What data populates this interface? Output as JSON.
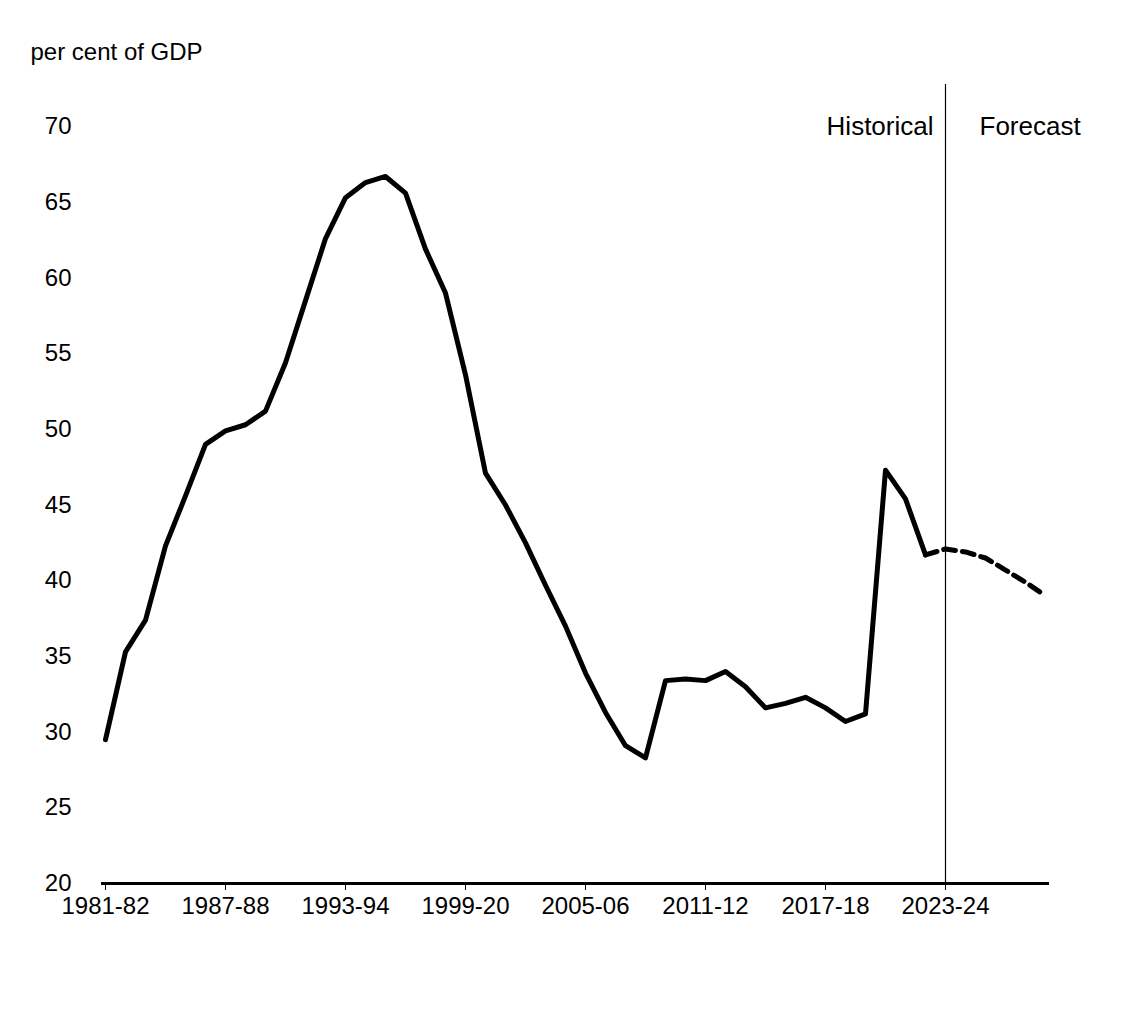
{
  "chart_data": {
    "type": "line",
    "y_label": "per cent of GDP",
    "categories": [
      "1981-82",
      null,
      null,
      null,
      null,
      null,
      "1987-88",
      null,
      null,
      null,
      null,
      null,
      "1993-94",
      null,
      null,
      null,
      null,
      null,
      "1999-20",
      null,
      null,
      null,
      null,
      null,
      "2005-06",
      null,
      null,
      null,
      null,
      null,
      "2011-12",
      null,
      null,
      null,
      null,
      null,
      "2017-18",
      null,
      null,
      null,
      null,
      null,
      "2023-24",
      null,
      null,
      null,
      null,
      null
    ],
    "series": [
      {
        "name": "Historical",
        "color": "#000000",
        "line_style": "solid",
        "values": [
          29.5,
          35.3,
          37.4,
          42.3,
          45.6,
          49.0,
          49.9,
          50.3,
          51.2,
          54.4,
          58.5,
          62.6,
          65.3,
          66.3,
          66.7,
          65.6,
          61.9,
          59.0,
          53.6,
          47.1,
          45.0,
          42.5,
          39.7,
          37.0,
          33.9,
          31.3,
          29.1,
          28.3,
          33.4,
          33.5,
          33.4,
          34.0,
          33.0,
          31.6,
          31.9,
          32.3,
          31.6,
          30.7,
          31.2,
          47.3,
          45.4,
          41.7,
          null,
          null,
          null,
          null,
          null,
          null
        ]
      },
      {
        "name": "Forecast",
        "color": "#000000",
        "line_style": "dashed",
        "values": [
          null,
          null,
          null,
          null,
          null,
          null,
          null,
          null,
          null,
          null,
          null,
          null,
          null,
          null,
          null,
          null,
          null,
          null,
          null,
          null,
          null,
          null,
          null,
          null,
          null,
          null,
          null,
          null,
          null,
          null,
          null,
          null,
          null,
          null,
          null,
          null,
          null,
          null,
          null,
          null,
          null,
          41.7,
          42.1,
          41.9,
          41.5,
          40.7,
          39.9,
          39.0
        ]
      }
    ],
    "ylim": [
      20,
      70
    ],
    "yticks": [
      20,
      25,
      30,
      35,
      40,
      45,
      50,
      55,
      60,
      65,
      70
    ],
    "grid": false
  }
}
